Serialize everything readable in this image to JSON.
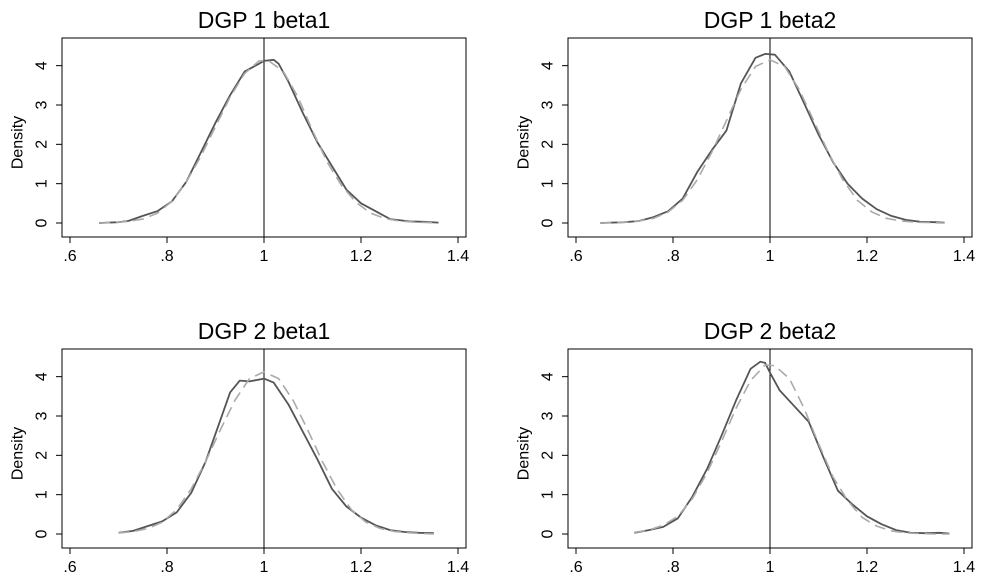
{
  "chart_data": [
    {
      "type": "line",
      "title": "DGP 1 beta1",
      "xlabel": "",
      "ylabel": "Density",
      "xlim": [
        0.6,
        1.4
      ],
      "ylim": [
        0,
        4.5
      ],
      "xticks": [
        ".6",
        ".8",
        "1",
        "1.2",
        "1.4"
      ],
      "yticks": [
        "0",
        "1",
        "2",
        "3",
        "4"
      ],
      "reference_line_x": 1,
      "series": [
        {
          "style": "solid",
          "color": "#555555",
          "x": [
            0.66,
            0.7,
            0.72,
            0.75,
            0.78,
            0.81,
            0.84,
            0.87,
            0.9,
            0.93,
            0.96,
            0.99,
            1.0,
            1.02,
            1.03,
            1.05,
            1.08,
            1.11,
            1.14,
            1.17,
            1.2,
            1.23,
            1.26,
            1.3,
            1.33,
            1.36
          ],
          "y": [
            0.0,
            0.02,
            0.05,
            0.18,
            0.3,
            0.55,
            1.05,
            1.8,
            2.55,
            3.25,
            3.85,
            4.05,
            4.12,
            4.15,
            4.05,
            3.6,
            2.8,
            2.05,
            1.45,
            0.85,
            0.5,
            0.3,
            0.1,
            0.04,
            0.03,
            0.01
          ]
        },
        {
          "style": "dashed",
          "color": "#aaaaaa",
          "x": [
            0.66,
            0.7,
            0.72,
            0.75,
            0.78,
            0.81,
            0.84,
            0.87,
            0.9,
            0.93,
            0.96,
            0.99,
            1.01,
            1.04,
            1.07,
            1.1,
            1.13,
            1.16,
            1.19,
            1.22,
            1.25,
            1.28,
            1.31,
            1.34,
            1.36
          ],
          "y": [
            0.0,
            0.02,
            0.04,
            0.1,
            0.25,
            0.55,
            1.05,
            1.7,
            2.45,
            3.2,
            3.8,
            4.12,
            4.12,
            3.85,
            3.2,
            2.35,
            1.55,
            0.95,
            0.52,
            0.25,
            0.11,
            0.05,
            0.02,
            0.01,
            0.0
          ]
        }
      ]
    },
    {
      "type": "line",
      "title": "DGP 1 beta2",
      "xlabel": "",
      "ylabel": "Density",
      "xlim": [
        0.6,
        1.4
      ],
      "ylim": [
        0,
        4.5
      ],
      "xticks": [
        ".6",
        ".8",
        "1",
        "1.2",
        "1.4"
      ],
      "yticks": [
        "0",
        "1",
        "2",
        "3",
        "4"
      ],
      "reference_line_x": 1,
      "series": [
        {
          "style": "solid",
          "color": "#555555",
          "x": [
            0.65,
            0.7,
            0.73,
            0.76,
            0.79,
            0.82,
            0.85,
            0.88,
            0.91,
            0.94,
            0.97,
            0.99,
            1.01,
            1.04,
            1.07,
            1.1,
            1.13,
            1.16,
            1.19,
            1.22,
            1.25,
            1.28,
            1.31,
            1.34,
            1.36
          ],
          "y": [
            0.0,
            0.02,
            0.05,
            0.15,
            0.3,
            0.62,
            1.3,
            1.85,
            2.35,
            3.55,
            4.2,
            4.3,
            4.28,
            3.85,
            3.05,
            2.25,
            1.55,
            1.0,
            0.62,
            0.35,
            0.18,
            0.08,
            0.03,
            0.02,
            0.01
          ]
        },
        {
          "style": "dashed",
          "color": "#aaaaaa",
          "x": [
            0.65,
            0.7,
            0.73,
            0.76,
            0.79,
            0.82,
            0.85,
            0.88,
            0.91,
            0.94,
            0.97,
            1.0,
            1.03,
            1.06,
            1.09,
            1.12,
            1.15,
            1.18,
            1.21,
            1.24,
            1.27,
            1.3,
            1.33,
            1.36
          ],
          "y": [
            0.0,
            0.02,
            0.05,
            0.12,
            0.28,
            0.58,
            1.1,
            1.8,
            2.6,
            3.4,
            3.98,
            4.15,
            3.98,
            3.4,
            2.6,
            1.8,
            1.1,
            0.58,
            0.28,
            0.12,
            0.05,
            0.02,
            0.01,
            0.0
          ]
        }
      ]
    },
    {
      "type": "line",
      "title": "DGP 2 beta1",
      "xlabel": "",
      "ylabel": "Density",
      "xlim": [
        0.6,
        1.4
      ],
      "ylim": [
        0,
        4.5
      ],
      "xticks": [
        ".6",
        ".8",
        "1",
        "1.2",
        "1.4"
      ],
      "yticks": [
        "0",
        "1",
        "2",
        "3",
        "4"
      ],
      "reference_line_x": 1,
      "series": [
        {
          "style": "solid",
          "color": "#555555",
          "x": [
            0.7,
            0.73,
            0.76,
            0.79,
            0.82,
            0.85,
            0.88,
            0.91,
            0.93,
            0.95,
            0.97,
            1.0,
            1.02,
            1.05,
            1.08,
            1.11,
            1.14,
            1.17,
            1.2,
            1.23,
            1.26,
            1.29,
            1.32,
            1.35
          ],
          "y": [
            0.03,
            0.08,
            0.2,
            0.32,
            0.55,
            1.05,
            1.85,
            2.9,
            3.6,
            3.9,
            3.88,
            3.95,
            3.85,
            3.3,
            2.6,
            1.9,
            1.15,
            0.7,
            0.42,
            0.22,
            0.1,
            0.05,
            0.03,
            0.02
          ]
        },
        {
          "style": "dashed",
          "color": "#aaaaaa",
          "x": [
            0.7,
            0.73,
            0.76,
            0.79,
            0.82,
            0.85,
            0.88,
            0.91,
            0.94,
            0.97,
            1.0,
            1.03,
            1.06,
            1.09,
            1.12,
            1.15,
            1.18,
            1.21,
            1.24,
            1.27,
            1.3,
            1.33,
            1.35
          ],
          "y": [
            0.03,
            0.06,
            0.14,
            0.3,
            0.62,
            1.15,
            1.85,
            2.65,
            3.4,
            3.95,
            4.12,
            3.95,
            3.4,
            2.65,
            1.85,
            1.15,
            0.62,
            0.3,
            0.14,
            0.06,
            0.03,
            0.01,
            0.0
          ]
        }
      ]
    },
    {
      "type": "line",
      "title": "DGP 2 beta2",
      "xlabel": "",
      "ylabel": "Density",
      "xlim": [
        0.6,
        1.4
      ],
      "ylim": [
        0,
        4.5
      ],
      "xticks": [
        ".6",
        ".8",
        "1",
        "1.2",
        "1.4"
      ],
      "yticks": [
        "0",
        "1",
        "2",
        "3",
        "4"
      ],
      "reference_line_x": 1,
      "series": [
        {
          "style": "solid",
          "color": "#555555",
          "x": [
            0.72,
            0.75,
            0.78,
            0.81,
            0.84,
            0.87,
            0.9,
            0.93,
            0.96,
            0.98,
            0.99,
            1.0,
            1.02,
            1.05,
            1.08,
            1.11,
            1.14,
            1.17,
            1.2,
            1.23,
            1.26,
            1.29,
            1.32,
            1.35,
            1.37
          ],
          "y": [
            0.03,
            0.1,
            0.18,
            0.4,
            0.95,
            1.65,
            2.5,
            3.4,
            4.2,
            4.38,
            4.35,
            4.1,
            3.65,
            3.25,
            2.85,
            1.95,
            1.1,
            0.75,
            0.45,
            0.25,
            0.1,
            0.03,
            0.02,
            0.03,
            0.01
          ]
        },
        {
          "style": "dashed",
          "color": "#aaaaaa",
          "x": [
            0.72,
            0.75,
            0.78,
            0.81,
            0.84,
            0.87,
            0.9,
            0.93,
            0.96,
            0.99,
            1.01,
            1.04,
            1.07,
            1.1,
            1.13,
            1.16,
            1.19,
            1.22,
            1.25,
            1.28,
            1.31,
            1.34,
            1.37
          ],
          "y": [
            0.04,
            0.1,
            0.22,
            0.45,
            0.9,
            1.55,
            2.35,
            3.2,
            3.9,
            4.3,
            4.28,
            3.95,
            3.2,
            2.3,
            1.45,
            0.85,
            0.42,
            0.2,
            0.08,
            0.03,
            0.01,
            0.0,
            0.0
          ]
        }
      ]
    }
  ]
}
